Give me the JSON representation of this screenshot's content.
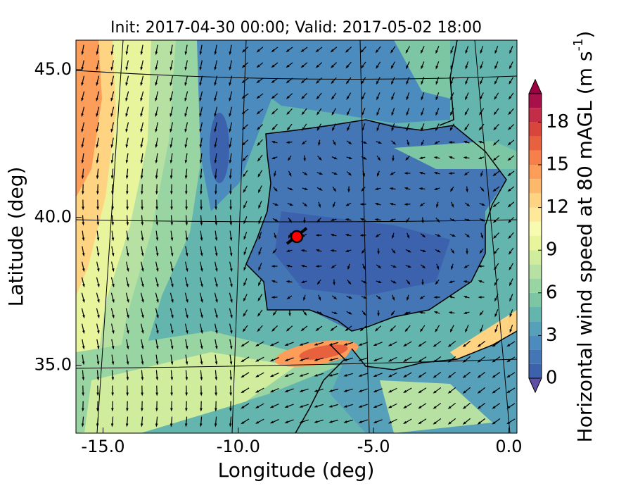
{
  "chart_data": {
    "type": "map",
    "title": "Init: 2017-04-30 00:00; Valid: 2017-05-02 18:00",
    "xlabel": "Longitude (deg)",
    "ylabel": "Latitude (deg)",
    "xlim": [
      -16.0,
      0.3
    ],
    "xticks": [
      {
        "value": -15,
        "label": "-15.0"
      },
      {
        "value": -10,
        "label": "-10.0"
      },
      {
        "value": -5,
        "label": "-5.0"
      },
      {
        "value": 0,
        "label": "0.0"
      }
    ],
    "ylim": [
      32.7,
      46.0
    ],
    "yticks": [
      {
        "value": 35,
        "label": "35.0"
      },
      {
        "value": 40,
        "label": "40.0"
      },
      {
        "value": 45,
        "label": "45.0"
      }
    ],
    "colorbar": {
      "label": "Horizontal wind speed at 80 mAGL (m s",
      "label_exponent": "-1",
      "label_close": ")",
      "clim": [
        0,
        20
      ],
      "ticks": [
        0,
        3,
        6,
        9,
        12,
        15,
        18
      ],
      "levels": [
        0,
        1,
        2,
        3,
        4,
        5,
        6,
        7,
        8,
        9,
        10,
        11,
        12,
        13,
        14,
        15,
        16,
        17,
        18,
        19,
        20
      ],
      "colors": [
        "#3d62ad",
        "#4475b4",
        "#4b8bbd",
        "#56a1b9",
        "#63b5ad",
        "#7cc6a4",
        "#99d4a3",
        "#b6e1a2",
        "#d0ec9d",
        "#e9f59d",
        "#f7fbb0",
        "#fee99a",
        "#fed382",
        "#fdb96b",
        "#fc9d5a",
        "#f67f4b",
        "#e8613f",
        "#d8453b",
        "#c42d48",
        "#a8104a"
      ],
      "under_color": "#5e4fa2",
      "over_color": "#9e0142"
    }
  }
}
